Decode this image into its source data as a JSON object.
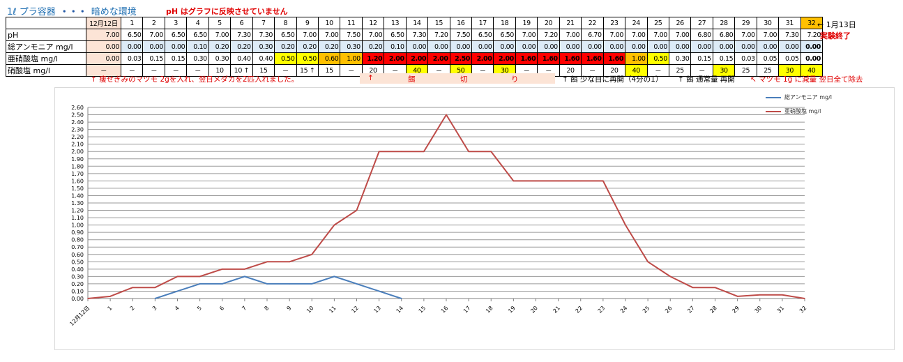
{
  "title": {
    "vessel": "1ℓ プラ容器",
    "dots": "・・・",
    "env": "暗めな環境"
  },
  "warning": "pH はグラフに反映させていません",
  "table": {
    "days": [
      "12月12日",
      "1",
      "2",
      "3",
      "4",
      "5",
      "6",
      "7",
      "8",
      "9",
      "10",
      "11",
      "12",
      "13",
      "14",
      "15",
      "16",
      "17",
      "18",
      "19",
      "20",
      "21",
      "22",
      "23",
      "24",
      "25",
      "26",
      "27",
      "28",
      "29",
      "30",
      "31",
      "32"
    ],
    "rows": [
      {
        "label": "pH",
        "values": [
          "7.00",
          "6.50",
          "7.00",
          "6.50",
          "6.50",
          "7.00",
          "7.30",
          "7.30",
          "6.50",
          "7.00",
          "7.00",
          "7.50",
          "7.00",
          "6.50",
          "7.30",
          "7.20",
          "7.50",
          "6.50",
          "6.50",
          "7.00",
          "7.20",
          "7.00",
          "6.70",
          "7.00",
          "7.00",
          "7.00",
          "7.00",
          "6.80",
          "6.80",
          "7.00",
          "7.00",
          "7.30",
          "7.20"
        ]
      },
      {
        "label": "総アンモニア mg/l",
        "values": [
          "0.00",
          "0.00",
          "0.00",
          "0.00",
          "0.10",
          "0.20",
          "0.20",
          "0.30",
          "0.20",
          "0.20",
          "0.20",
          "0.30",
          "0.20",
          "0.10",
          "0.00",
          "0.00",
          "0.00",
          "0.00",
          "0.00",
          "0.00",
          "0.00",
          "0.00",
          "0.00",
          "0.00",
          "0.00",
          "0.00",
          "0.00",
          "0.00",
          "0.00",
          "0.00",
          "0.00",
          "0.00",
          "0.00"
        ]
      },
      {
        "label": "亜硝酸塩 mg/l",
        "values": [
          "0.00",
          "0.03",
          "0.15",
          "0.15",
          "0.30",
          "0.30",
          "0.40",
          "0.40",
          "0.50",
          "0.50",
          "0.60",
          "1.00",
          "1.20",
          "2.00",
          "2.00",
          "2.00",
          "2.50",
          "2.00",
          "2.00",
          "1.60",
          "1.60",
          "1.60",
          "1.60",
          "1.60",
          "1.00",
          "0.50",
          "0.30",
          "0.15",
          "0.15",
          "0.03",
          "0.05",
          "0.05",
          "0.00"
        ]
      },
      {
        "label": "硝酸塩 mg/l",
        "values": [
          "－",
          "－",
          "－",
          "－",
          "－",
          "10",
          "10 ↑",
          "15",
          "－",
          "15 ↑",
          "15",
          "－",
          "20",
          "－",
          "40",
          "－",
          "50",
          "－",
          "30",
          "－",
          "－",
          "20",
          "－",
          "20",
          "40",
          "－",
          "25",
          "－",
          "30",
          "25",
          "25",
          "30",
          "40"
        ]
      }
    ]
  },
  "side_notes": {
    "end_date": "← 1月13日",
    "experiment_end": "実験終了"
  },
  "notes": {
    "medaka": "↑ 痩せぎみのマツモ 2gを入れ、翌日メダカを2匹入れました。",
    "feed_cut": [
      "↑",
      "餌",
      "切",
      "り"
    ],
    "feed_restart": "↑ 餌 少な目に再開（4分の1）",
    "feed_normal": "↑ 餌 通常量 再開",
    "matsumo": "↖ マツモ 1g に減量 翌日全て除去"
  },
  "colors": {
    "ammonia": "#4a7ebb",
    "nitrite": "#be4b48",
    "peach": "#fce4d6",
    "blue": "#ddebf7",
    "yellow": "#ffff00",
    "orange": "#ffc000",
    "red": "#ff0000"
  },
  "chart_data": {
    "type": "line",
    "categories": [
      "12月12日",
      "1",
      "2",
      "3",
      "4",
      "5",
      "6",
      "7",
      "8",
      "9",
      "10",
      "11",
      "12",
      "13",
      "14",
      "15",
      "16",
      "17",
      "18",
      "19",
      "20",
      "21",
      "22",
      "23",
      "24",
      "25",
      "26",
      "27",
      "28",
      "29",
      "30",
      "31",
      "32"
    ],
    "ylim": [
      0,
      2.6
    ],
    "ytick_step": 0.1,
    "grid": true,
    "legend_position": "right",
    "series": [
      {
        "name": "総アンモニア mg/l",
        "color": "#4a7ebb",
        "values": [
          null,
          null,
          null,
          0.0,
          0.1,
          0.2,
          0.2,
          0.3,
          0.2,
          0.2,
          0.2,
          0.3,
          0.2,
          0.1,
          0.0,
          null,
          null,
          null,
          null,
          null,
          null,
          null,
          null,
          null,
          null,
          null,
          null,
          null,
          null,
          null,
          null,
          null,
          null
        ]
      },
      {
        "name": "亜硝酸塩 mg/l",
        "color": "#be4b48",
        "values": [
          0.0,
          0.03,
          0.15,
          0.15,
          0.3,
          0.3,
          0.4,
          0.4,
          0.5,
          0.5,
          0.6,
          1.0,
          1.2,
          2.0,
          2.0,
          2.0,
          2.5,
          2.0,
          2.0,
          1.6,
          1.6,
          1.6,
          1.6,
          1.6,
          1.0,
          0.5,
          0.3,
          0.15,
          0.15,
          0.03,
          0.05,
          0.05,
          0.0
        ]
      }
    ]
  }
}
